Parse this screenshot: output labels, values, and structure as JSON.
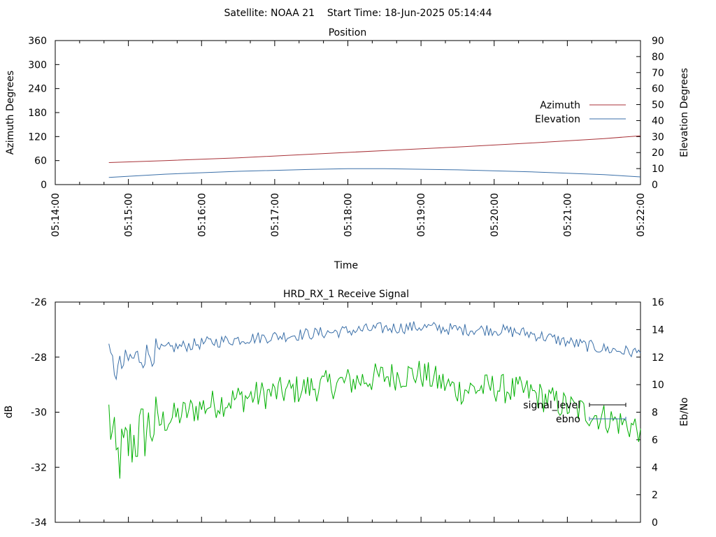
{
  "header": {
    "title": "Satellite: NOAA 21    Start Time: 18-Jun-2025 05:14:44"
  },
  "chart_data": [
    {
      "type": "line",
      "title": "Position",
      "xlabel": "Time",
      "ylabel": "Azimuth Degrees",
      "y2label": "Elevation Degrees",
      "xlim": [
        "05:14:00",
        "05:22:00"
      ],
      "ylim": [
        0,
        360
      ],
      "y2lim": [
        0,
        90
      ],
      "xticks": [
        "05:14:00",
        "05:15:00",
        "05:16:00",
        "05:17:00",
        "05:18:00",
        "05:19:00",
        "05:20:00",
        "05:21:00",
        "05:22:00"
      ],
      "yticks": [
        "0",
        "60",
        "120",
        "180",
        "240",
        "300",
        "360"
      ],
      "y2ticks": [
        "0",
        "10",
        "20",
        "30",
        "40",
        "50",
        "60",
        "70",
        "80",
        "90"
      ],
      "legend": "right",
      "grid": false,
      "series": [
        {
          "name": "Azimuth",
          "axis": "y",
          "color": "#a83238",
          "x": [
            "05:14:44",
            "05:15:30",
            "05:16:30",
            "05:17:30",
            "05:18:30",
            "05:19:30",
            "05:20:30",
            "05:21:30",
            "05:22:00"
          ],
          "values": [
            55,
            60,
            67,
            76,
            85,
            94,
            104,
            115,
            122
          ]
        },
        {
          "name": "Elevation",
          "axis": "y2",
          "color": "#3a6fa8",
          "x": [
            "05:14:44",
            "05:15:30",
            "05:16:30",
            "05:17:30",
            "05:18:00",
            "05:18:30",
            "05:19:30",
            "05:20:30",
            "05:21:30",
            "05:22:00"
          ],
          "values": [
            4.5,
            6.5,
            8.3,
            9.5,
            9.9,
            9.9,
            9.2,
            8.0,
            6.2,
            4.8
          ]
        }
      ]
    },
    {
      "type": "line",
      "title": "HRD_RX_1 Receive Signal",
      "ylabel": "dB",
      "y2label": "Eb/No",
      "xlim": [
        "05:14:00",
        "05:22:00"
      ],
      "ylim": [
        -34,
        -26
      ],
      "y2lim": [
        0,
        16
      ],
      "yticks": [
        "-34",
        "-32",
        "-30",
        "-28",
        "-26"
      ],
      "y2ticks": [
        "0",
        "2",
        "4",
        "6",
        "8",
        "10",
        "12",
        "14",
        "16"
      ],
      "legend": "right",
      "grid": false,
      "series": [
        {
          "name": "signal_level",
          "axis": "y",
          "color": "#00b000",
          "x": [
            "05:14:44",
            "05:14:50",
            "05:15:00",
            "05:15:15",
            "05:15:30",
            "05:16:00",
            "05:16:30",
            "05:17:00",
            "05:17:30",
            "05:18:00",
            "05:18:30",
            "05:19:00",
            "05:19:30",
            "05:20:00",
            "05:20:30",
            "05:21:00",
            "05:21:30",
            "05:22:00"
          ],
          "values": [
            -30.1,
            -31.8,
            -31.2,
            -30.6,
            -30.3,
            -29.8,
            -29.5,
            -29.3,
            -29.1,
            -28.9,
            -28.7,
            -28.6,
            -29.2,
            -29.1,
            -29.3,
            -29.8,
            -30.2,
            -30.6
          ]
        },
        {
          "name": "ebno",
          "axis": "y2",
          "color": "#3a6fa8",
          "x": [
            "05:14:44",
            "05:14:50",
            "05:15:00",
            "05:15:15",
            "05:15:30",
            "05:16:00",
            "05:16:30",
            "05:17:00",
            "05:17:30",
            "05:18:00",
            "05:18:30",
            "05:19:00",
            "05:19:30",
            "05:20:00",
            "05:20:30",
            "05:21:00",
            "05:21:30",
            "05:22:00"
          ],
          "values": [
            12.0,
            11.0,
            11.8,
            12.2,
            12.6,
            13.0,
            13.3,
            13.5,
            13.7,
            13.9,
            14.1,
            14.2,
            14.0,
            14.0,
            13.7,
            13.1,
            12.6,
            12.3
          ]
        }
      ]
    }
  ]
}
